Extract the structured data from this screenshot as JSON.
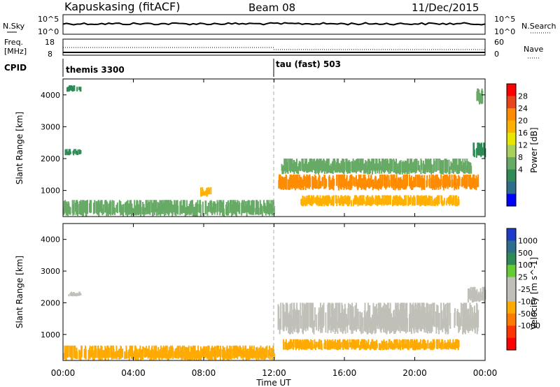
{
  "header": {
    "station": "Kapuskasing (fitACF)",
    "beam": "Beam 08",
    "date": "11/Dec/2015"
  },
  "noise_panel": {
    "left_label": "N.Sky",
    "left_ticks": [
      "10^5",
      "10^0"
    ],
    "right_ticks": [
      "10^5",
      "10^0"
    ],
    "right_label": "N.Search"
  },
  "freq_panel": {
    "left_label_line1": "Freq.",
    "left_label_line2": "[MHz]",
    "left_ticks": [
      "18",
      "8"
    ],
    "right_ticks": [
      "60",
      "0"
    ],
    "right_label": "Nave"
  },
  "cpid_panel": {
    "label": "CPID",
    "segments": [
      {
        "text": "themis 3300",
        "start": 0
      },
      {
        "text": "tau (fast) 503",
        "start": 12
      }
    ]
  },
  "power_panel": {
    "ylabel": "Slant Range [km]",
    "yticks": [
      "4000",
      "3000",
      "2000",
      "1000"
    ],
    "colorbar_label": "Power [dB]",
    "colorbar_ticks": [
      "28",
      "24",
      "20",
      "16",
      "12",
      "8",
      "4"
    ],
    "colorbar_colors": [
      "#ff0000",
      "#e8461a",
      "#ff8c00",
      "#ffb000",
      "#e6e600",
      "#a8d05a",
      "#66aa66",
      "#2e8b57",
      "#2e6e8c",
      "#0000ff"
    ]
  },
  "velocity_panel": {
    "ylabel": "Slant Range [km]",
    "yticks": [
      "4000",
      "3000",
      "2000",
      "1000"
    ],
    "colorbar_label": "Velocity [m s^-1]",
    "colorbar_ticks": [
      "1000",
      "500",
      "100",
      "25",
      "-25",
      "-100",
      "-500",
      "-1000"
    ],
    "colorbar_colors": [
      "#1e3cc8",
      "#2e6e8c",
      "#2e8b57",
      "#66cc33",
      "#c0c0b8",
      "#c0c0b8",
      "#ffaa00",
      "#ff7a00",
      "#ff3300",
      "#ff0000"
    ]
  },
  "x_axis": {
    "ticks": [
      "00:00",
      "04:00",
      "08:00",
      "12:00",
      "16:00",
      "20:00",
      "00:00"
    ],
    "label": "Time UT"
  },
  "chart_data": {
    "type": "heatmap",
    "x_range_hours": [
      0,
      24
    ],
    "y_range_km": [
      180,
      4500
    ],
    "mode_change_hour": 12,
    "power_regions": [
      {
        "t0": 0.0,
        "t1": 12.0,
        "r0": 180,
        "r1": 700,
        "dB": 12
      },
      {
        "t0": 0.1,
        "t1": 1.0,
        "r0": 2100,
        "r1": 2300,
        "dB": 8
      },
      {
        "t0": 0.2,
        "t1": 1.0,
        "r0": 4100,
        "r1": 4300,
        "dB": 8
      },
      {
        "t0": 7.8,
        "t1": 8.4,
        "r0": 800,
        "r1": 1100,
        "dB": 20
      },
      {
        "t0": 12.2,
        "t1": 23.6,
        "r0": 1000,
        "r1": 1500,
        "dB": 24
      },
      {
        "t0": 12.4,
        "t1": 23.2,
        "r0": 1500,
        "r1": 2000,
        "dB": 12
      },
      {
        "t0": 13.5,
        "t1": 22.5,
        "r0": 500,
        "r1": 850,
        "dB": 20
      },
      {
        "t0": 23.3,
        "t1": 24.0,
        "r0": 2000,
        "r1": 2500,
        "dB": 8
      },
      {
        "t0": 23.5,
        "t1": 23.9,
        "r0": 3700,
        "r1": 4200,
        "dB": 12
      }
    ],
    "velocity_regions": [
      {
        "t0": 0.0,
        "t1": 12.0,
        "r0": 180,
        "r1": 650,
        "v": -100
      },
      {
        "t0": 0.3,
        "t1": 1.0,
        "r0": 2200,
        "r1": 2350,
        "v": 0
      },
      {
        "t0": 12.2,
        "t1": 23.6,
        "r0": 1000,
        "r1": 2000,
        "v": 0
      },
      {
        "t0": 12.5,
        "t1": 22.5,
        "r0": 500,
        "r1": 850,
        "v": -200
      },
      {
        "t0": 23.0,
        "t1": 24.0,
        "r0": 2000,
        "r1": 2500,
        "v": 0
      }
    ]
  }
}
